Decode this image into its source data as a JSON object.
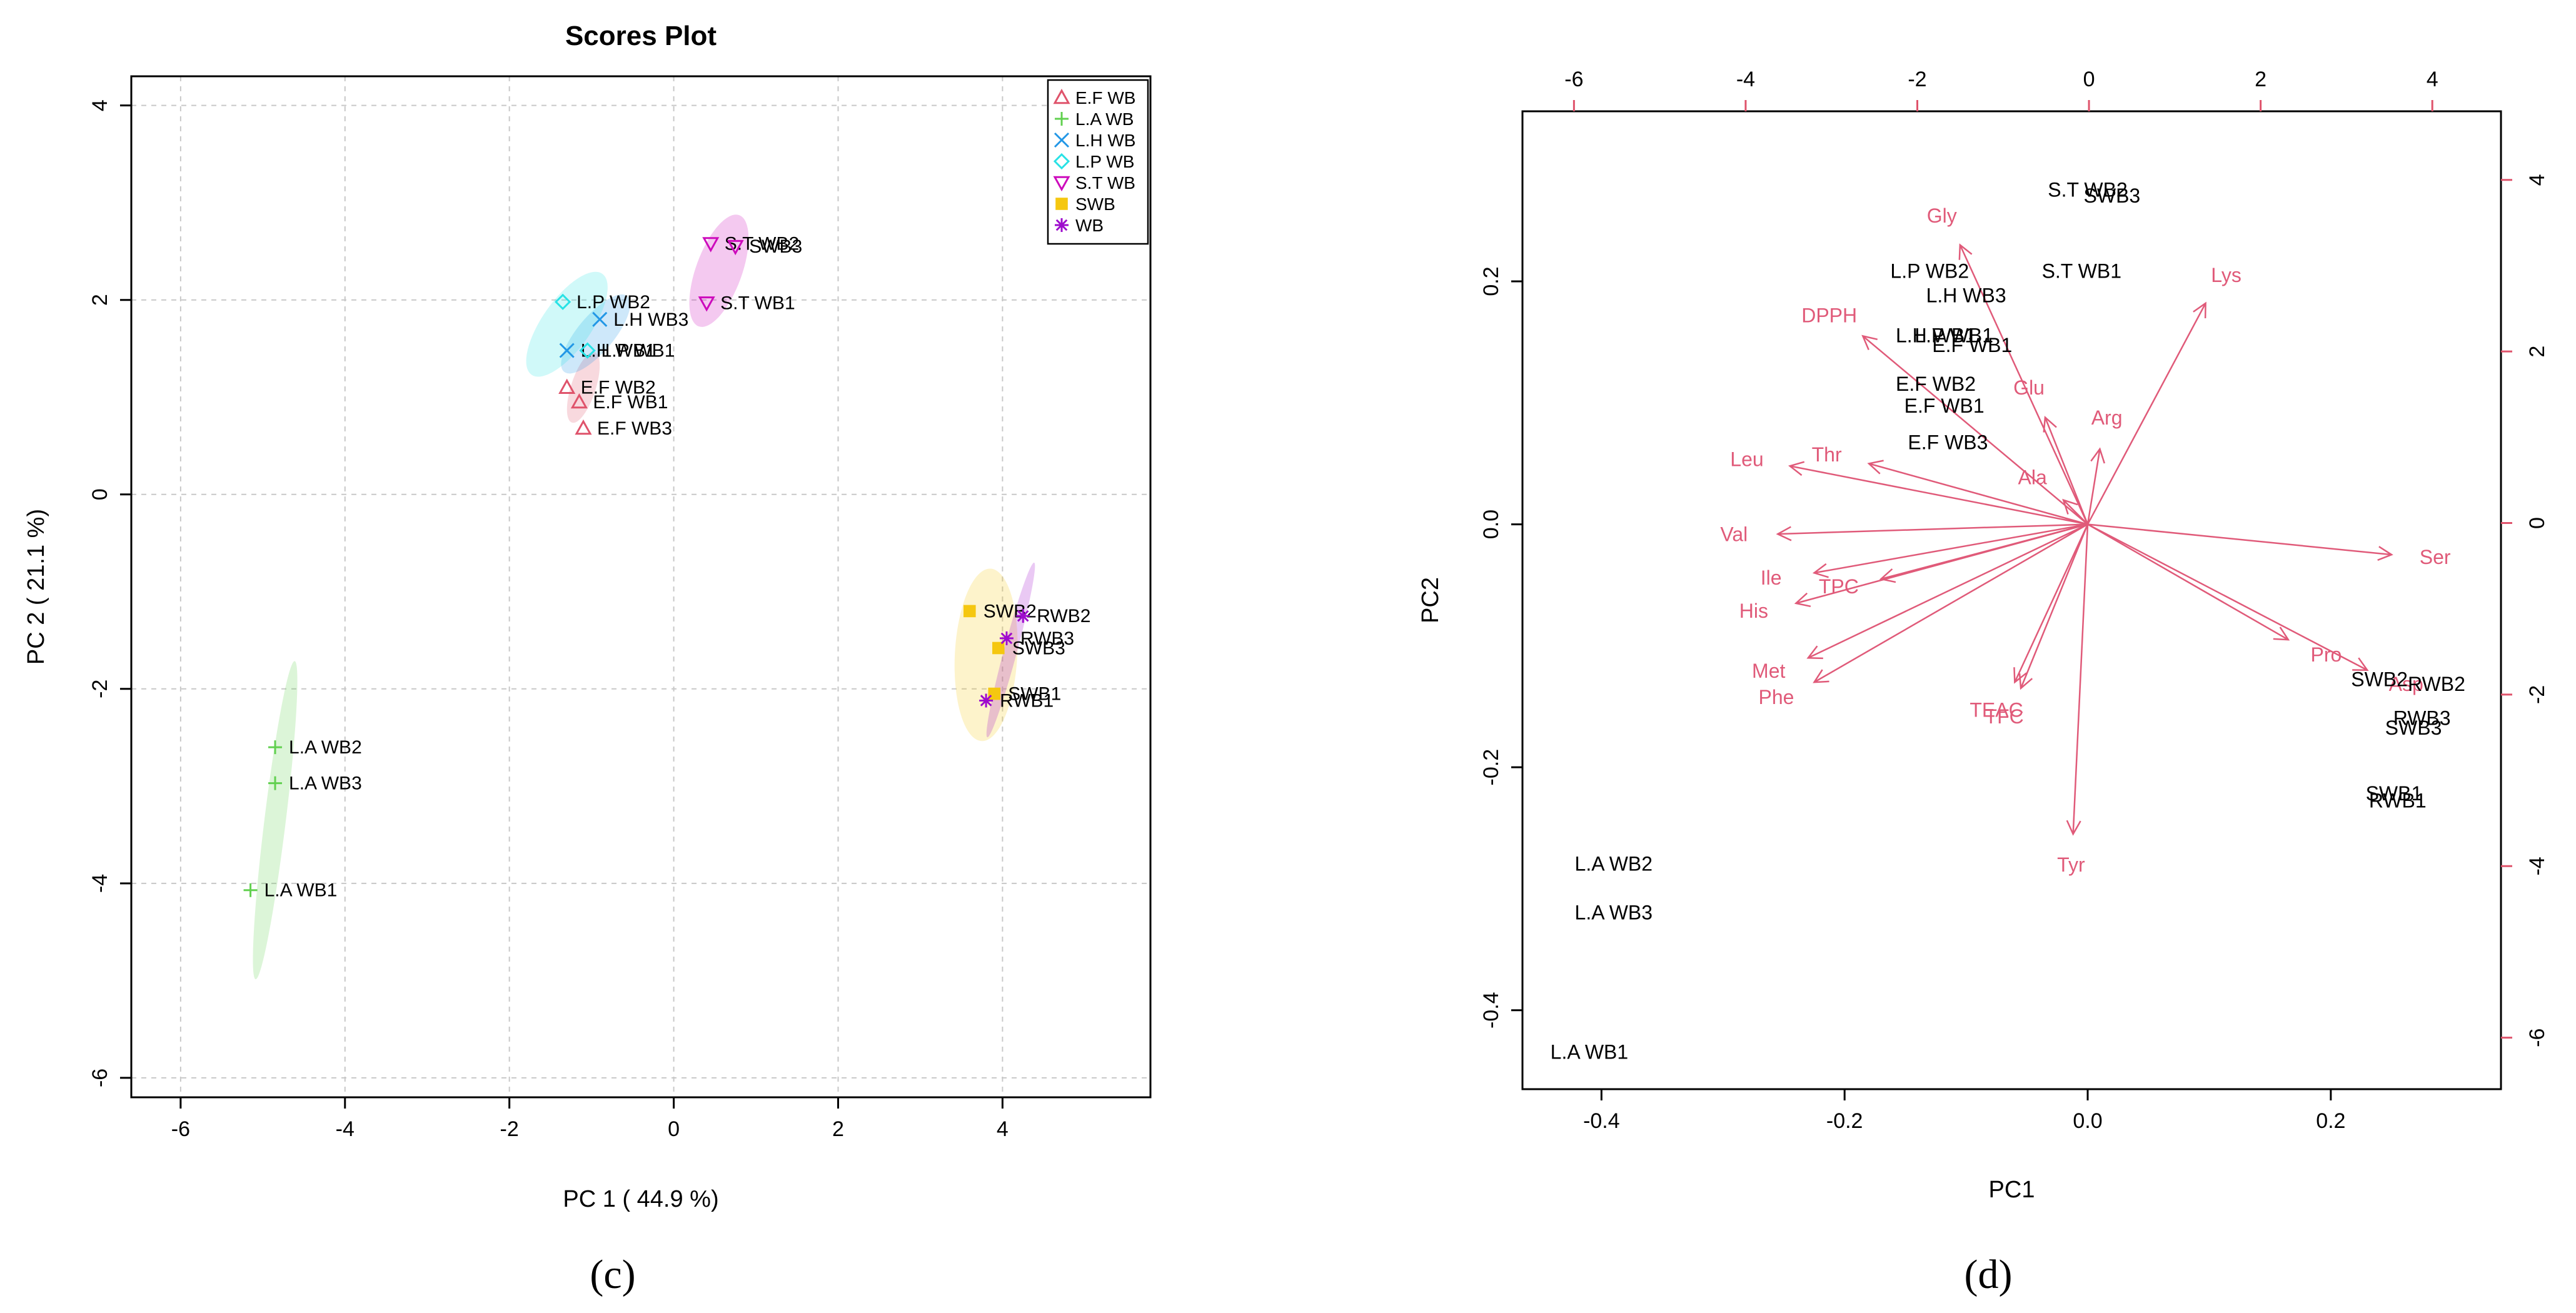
{
  "panel_labels": {
    "c": "(c)",
    "d": "(d)"
  },
  "chart_data": [
    {
      "type": "scatter",
      "title": "Scores Plot",
      "xlabel": "PC 1 ( 44.9 %)",
      "ylabel": "PC 2 ( 21.1 %)",
      "xlim": [
        -6.6,
        5.8
      ],
      "ylim": [
        -6.2,
        4.3
      ],
      "xticks": [
        -6,
        -4,
        -2,
        0,
        2,
        4
      ],
      "yticks": [
        -6,
        -4,
        -2,
        0,
        2,
        4
      ],
      "grid": true,
      "legend_position": "top-right",
      "series": [
        {
          "name": "E.F WB",
          "marker": "triangle",
          "color": "#df536b",
          "ellipse": {
            "cx": -1.1,
            "cy": 1.1,
            "rx": 0.45,
            "ry": 0.15,
            "angle": -72,
            "color": "#df536b"
          },
          "points": [
            {
              "label": "E.F WB2",
              "x": -1.3,
              "y": 1.1
            },
            {
              "label": "E.F WB1",
              "x": -1.15,
              "y": 0.95
            },
            {
              "label": "E.F WB3",
              "x": -1.1,
              "y": 0.68
            }
          ]
        },
        {
          "name": "L.A WB",
          "marker": "plus",
          "color": "#61d04f",
          "ellipse": {
            "cx": -4.85,
            "cy": -3.35,
            "rx": 1.95,
            "ry": 0.13,
            "angle": -83,
            "color": "#61d04f"
          },
          "points": [
            {
              "label": "L.A WB2",
              "x": -4.85,
              "y": -2.6
            },
            {
              "label": "L.A WB3",
              "x": -4.85,
              "y": -2.97
            },
            {
              "label": "L.A WB1",
              "x": -5.15,
              "y": -4.07
            }
          ]
        },
        {
          "name": "L.H WB",
          "marker": "cross",
          "color": "#2297e6",
          "ellipse": {
            "cx": -0.95,
            "cy": 1.65,
            "rx": 0.6,
            "ry": 0.22,
            "angle": -50,
            "color": "#2297e6"
          },
          "points": [
            {
              "label": "L.H WB3",
              "x": -0.9,
              "y": 1.8
            },
            {
              "label": "L.H WB1",
              "x": -1.3,
              "y": 1.48
            }
          ]
        },
        {
          "name": "L.P WB",
          "marker": "diamond",
          "color": "#28e2e5",
          "ellipse": {
            "cx": -1.3,
            "cy": 1.75,
            "rx": 0.75,
            "ry": 0.3,
            "angle": -55,
            "color": "#28e2e5"
          },
          "points": [
            {
              "label": "L.P WB2",
              "x": -1.35,
              "y": 1.98
            },
            {
              "label": "L.P WB1",
              "x": -1.05,
              "y": 1.48
            }
          ]
        },
        {
          "name": "S.T WB",
          "marker": "triangle-down",
          "color": "#cd0bbc",
          "ellipse": {
            "cx": 0.55,
            "cy": 2.3,
            "rx": 0.72,
            "ry": 0.28,
            "angle": -70,
            "color": "#cd0bbc"
          },
          "points": [
            {
              "label": "S.T WB2",
              "x": 0.45,
              "y": 2.58
            },
            {
              "label": "SWB3",
              "x": 0.75,
              "y": 2.55
            },
            {
              "label": "S.T WB1",
              "x": 0.4,
              "y": 1.97
            }
          ]
        },
        {
          "name": "SWB",
          "marker": "square",
          "color": "#f5c710",
          "ellipse": {
            "cx": 3.8,
            "cy": -1.65,
            "rx": 1.05,
            "ry": 0.38,
            "angle": -87,
            "color": "#f5c710"
          },
          "points": [
            {
              "label": "SWB2",
              "x": 3.6,
              "y": -1.2
            },
            {
              "label": "SWB3",
              "x": 3.95,
              "y": -1.58
            },
            {
              "label": "SWB1",
              "x": 3.9,
              "y": -2.05
            }
          ]
        },
        {
          "name": "WB",
          "marker": "asterisk",
          "color": "#9e0bcd",
          "ellipse": {
            "cx": 4.1,
            "cy": -1.6,
            "rx": 1.1,
            "ry": 0.08,
            "angle": -75,
            "color": "#9e0bcd"
          },
          "points": [
            {
              "label": "RWB2",
              "x": 4.25,
              "y": -1.25
            },
            {
              "label": "RWB3",
              "x": 4.05,
              "y": -1.48
            },
            {
              "label": "RWB1",
              "x": 3.8,
              "y": -2.12
            }
          ]
        }
      ]
    },
    {
      "type": "biplot",
      "xlabel": "PC1",
      "ylabel": "PC2",
      "xlim": [
        -0.465,
        0.34
      ],
      "ylim": [
        -0.465,
        0.34
      ],
      "xticks": [
        -0.4,
        -0.2,
        0.0,
        0.2
      ],
      "xtick_labels": [
        "-0.4",
        "-0.2",
        "0.0",
        "0.2"
      ],
      "yticks": [
        -0.4,
        -0.2,
        0.0,
        0.2
      ],
      "ytick_labels": [
        "-0.4",
        "-0.2",
        "0.0",
        "0.2"
      ],
      "top_xlim": [
        -6.6,
        4.8
      ],
      "top_xticks": [
        -6,
        -4,
        -2,
        0,
        2,
        4
      ],
      "right_ylim": [
        -6.6,
        4.8
      ],
      "right_yticks": [
        -6,
        -4,
        -2,
        0,
        2,
        4
      ],
      "observations": [
        {
          "label": "S.T WB2",
          "x": 0.0,
          "y": 0.275
        },
        {
          "label": "SWB3",
          "x": 0.02,
          "y": 0.27
        },
        {
          "label": "L.P WB2",
          "x": -0.13,
          "y": 0.208
        },
        {
          "label": "S.T WB1",
          "x": -0.005,
          "y": 0.208
        },
        {
          "label": "L.H WB3",
          "x": -0.1,
          "y": 0.188
        },
        {
          "label": "L.H WB1",
          "x": -0.125,
          "y": 0.155
        },
        {
          "label": "L.P WB1",
          "x": -0.11,
          "y": 0.155
        },
        {
          "label": "E.F WB1",
          "x": -0.095,
          "y": 0.147
        },
        {
          "label": "E.F WB2",
          "x": -0.125,
          "y": 0.115
        },
        {
          "label": "E.F WB1",
          "x": -0.118,
          "y": 0.097
        },
        {
          "label": "E.F WB3",
          "x": -0.115,
          "y": 0.067
        },
        {
          "label": "SWB2",
          "x": 0.24,
          "y": -0.128
        },
        {
          "label": "RWB2",
          "x": 0.287,
          "y": -0.132
        },
        {
          "label": "RWB3",
          "x": 0.275,
          "y": -0.16
        },
        {
          "label": "SWB3",
          "x": 0.268,
          "y": -0.168
        },
        {
          "label": "SWB1",
          "x": 0.252,
          "y": -0.222
        },
        {
          "label": "RWB1",
          "x": 0.255,
          "y": -0.228
        },
        {
          "label": "L.A WB2",
          "x": -0.39,
          "y": -0.28
        },
        {
          "label": "L.A WB3",
          "x": -0.39,
          "y": -0.32
        },
        {
          "label": "L.A WB1",
          "x": -0.41,
          "y": -0.435
        }
      ],
      "variables": [
        {
          "name": "Gly",
          "x": -0.105,
          "y": 0.23
        },
        {
          "name": "Lys",
          "x": 0.097,
          "y": 0.182
        },
        {
          "name": "DPPH",
          "x": -0.185,
          "y": 0.155
        },
        {
          "name": "Glu",
          "x": -0.035,
          "y": 0.088
        },
        {
          "name": "Arg",
          "x": 0.01,
          "y": 0.062
        },
        {
          "name": "Leu",
          "x": -0.245,
          "y": 0.048
        },
        {
          "name": "Thr",
          "x": -0.18,
          "y": 0.05
        },
        {
          "name": "Ala",
          "x": -0.02,
          "y": 0.02
        },
        {
          "name": "Val",
          "x": -0.255,
          "y": -0.008
        },
        {
          "name": "Ser",
          "x": 0.25,
          "y": -0.025
        },
        {
          "name": "Ile",
          "x": -0.225,
          "y": -0.04
        },
        {
          "name": "TPC",
          "x": -0.17,
          "y": -0.045
        },
        {
          "name": "His",
          "x": -0.24,
          "y": -0.065
        },
        {
          "name": "Met",
          "x": -0.23,
          "y": -0.11
        },
        {
          "name": "Phe",
          "x": -0.225,
          "y": -0.13
        },
        {
          "name": "Pro",
          "x": 0.165,
          "y": -0.095
        },
        {
          "name": "Asp",
          "x": 0.23,
          "y": -0.12
        },
        {
          "name": "TEAC",
          "x": -0.06,
          "y": -0.13
        },
        {
          "name": "TFC",
          "x": -0.055,
          "y": -0.135
        },
        {
          "name": "Tyr",
          "x": -0.012,
          "y": -0.255
        }
      ]
    }
  ]
}
